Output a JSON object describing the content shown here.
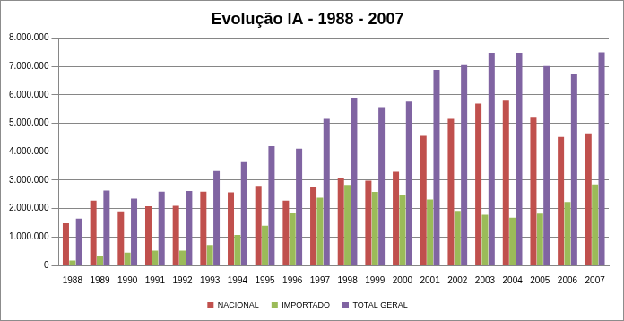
{
  "chart_data": {
    "type": "bar",
    "title": "Evolução IA - 1988 - 2007",
    "categories": [
      "1988",
      "1989",
      "1990",
      "1991",
      "1992",
      "1993",
      "1994",
      "1995",
      "1996",
      "1997",
      "1998",
      "1999",
      "2000",
      "2001",
      "2002",
      "2003",
      "2004",
      "2005",
      "2006",
      "2007"
    ],
    "series": [
      {
        "name": "NACIONAL",
        "color": "#c0504d",
        "values": [
          1480000,
          2280000,
          1900000,
          2080000,
          2100000,
          2600000,
          2570000,
          2800000,
          2280000,
          2780000,
          3080000,
          2980000,
          3300000,
          4560000,
          5160000,
          5700000,
          5800000,
          5200000,
          4520000,
          4650000
        ]
      },
      {
        "name": "IMPORTADO",
        "color": "#9bbb59",
        "values": [
          170000,
          350000,
          450000,
          520000,
          520000,
          720000,
          1070000,
          1400000,
          1830000,
          2380000,
          2830000,
          2590000,
          2470000,
          2320000,
          1920000,
          1780000,
          1680000,
          1820000,
          2230000,
          2850000
        ]
      },
      {
        "name": "TOTAL GERAL",
        "color": "#8064a2",
        "values": [
          1650000,
          2640000,
          2350000,
          2600000,
          2620000,
          3320000,
          3640000,
          4200000,
          4110000,
          5160000,
          5900000,
          5570000,
          5770000,
          6880000,
          7080000,
          7480000,
          7480000,
          7020000,
          6750000,
          7500000
        ]
      }
    ],
    "ylim": [
      0,
      8000000
    ],
    "yticks": [
      0,
      {
        "value": 1000000,
        "label": "1.000.000"
      },
      {
        "value": 2000000,
        "label": "2.000.000"
      },
      {
        "value": 3000000,
        "label": "3.000.000"
      },
      {
        "value": 4000000,
        "label": "4.000.000"
      },
      {
        "value": 5000000,
        "label": "5.000.000"
      },
      {
        "value": 6000000,
        "label": "6.000.000"
      },
      {
        "value": 7000000,
        "label": "7.000.000"
      },
      {
        "value": 8000000,
        "label": "8.000.000"
      }
    ],
    "grid": true,
    "legend": "bottom"
  }
}
